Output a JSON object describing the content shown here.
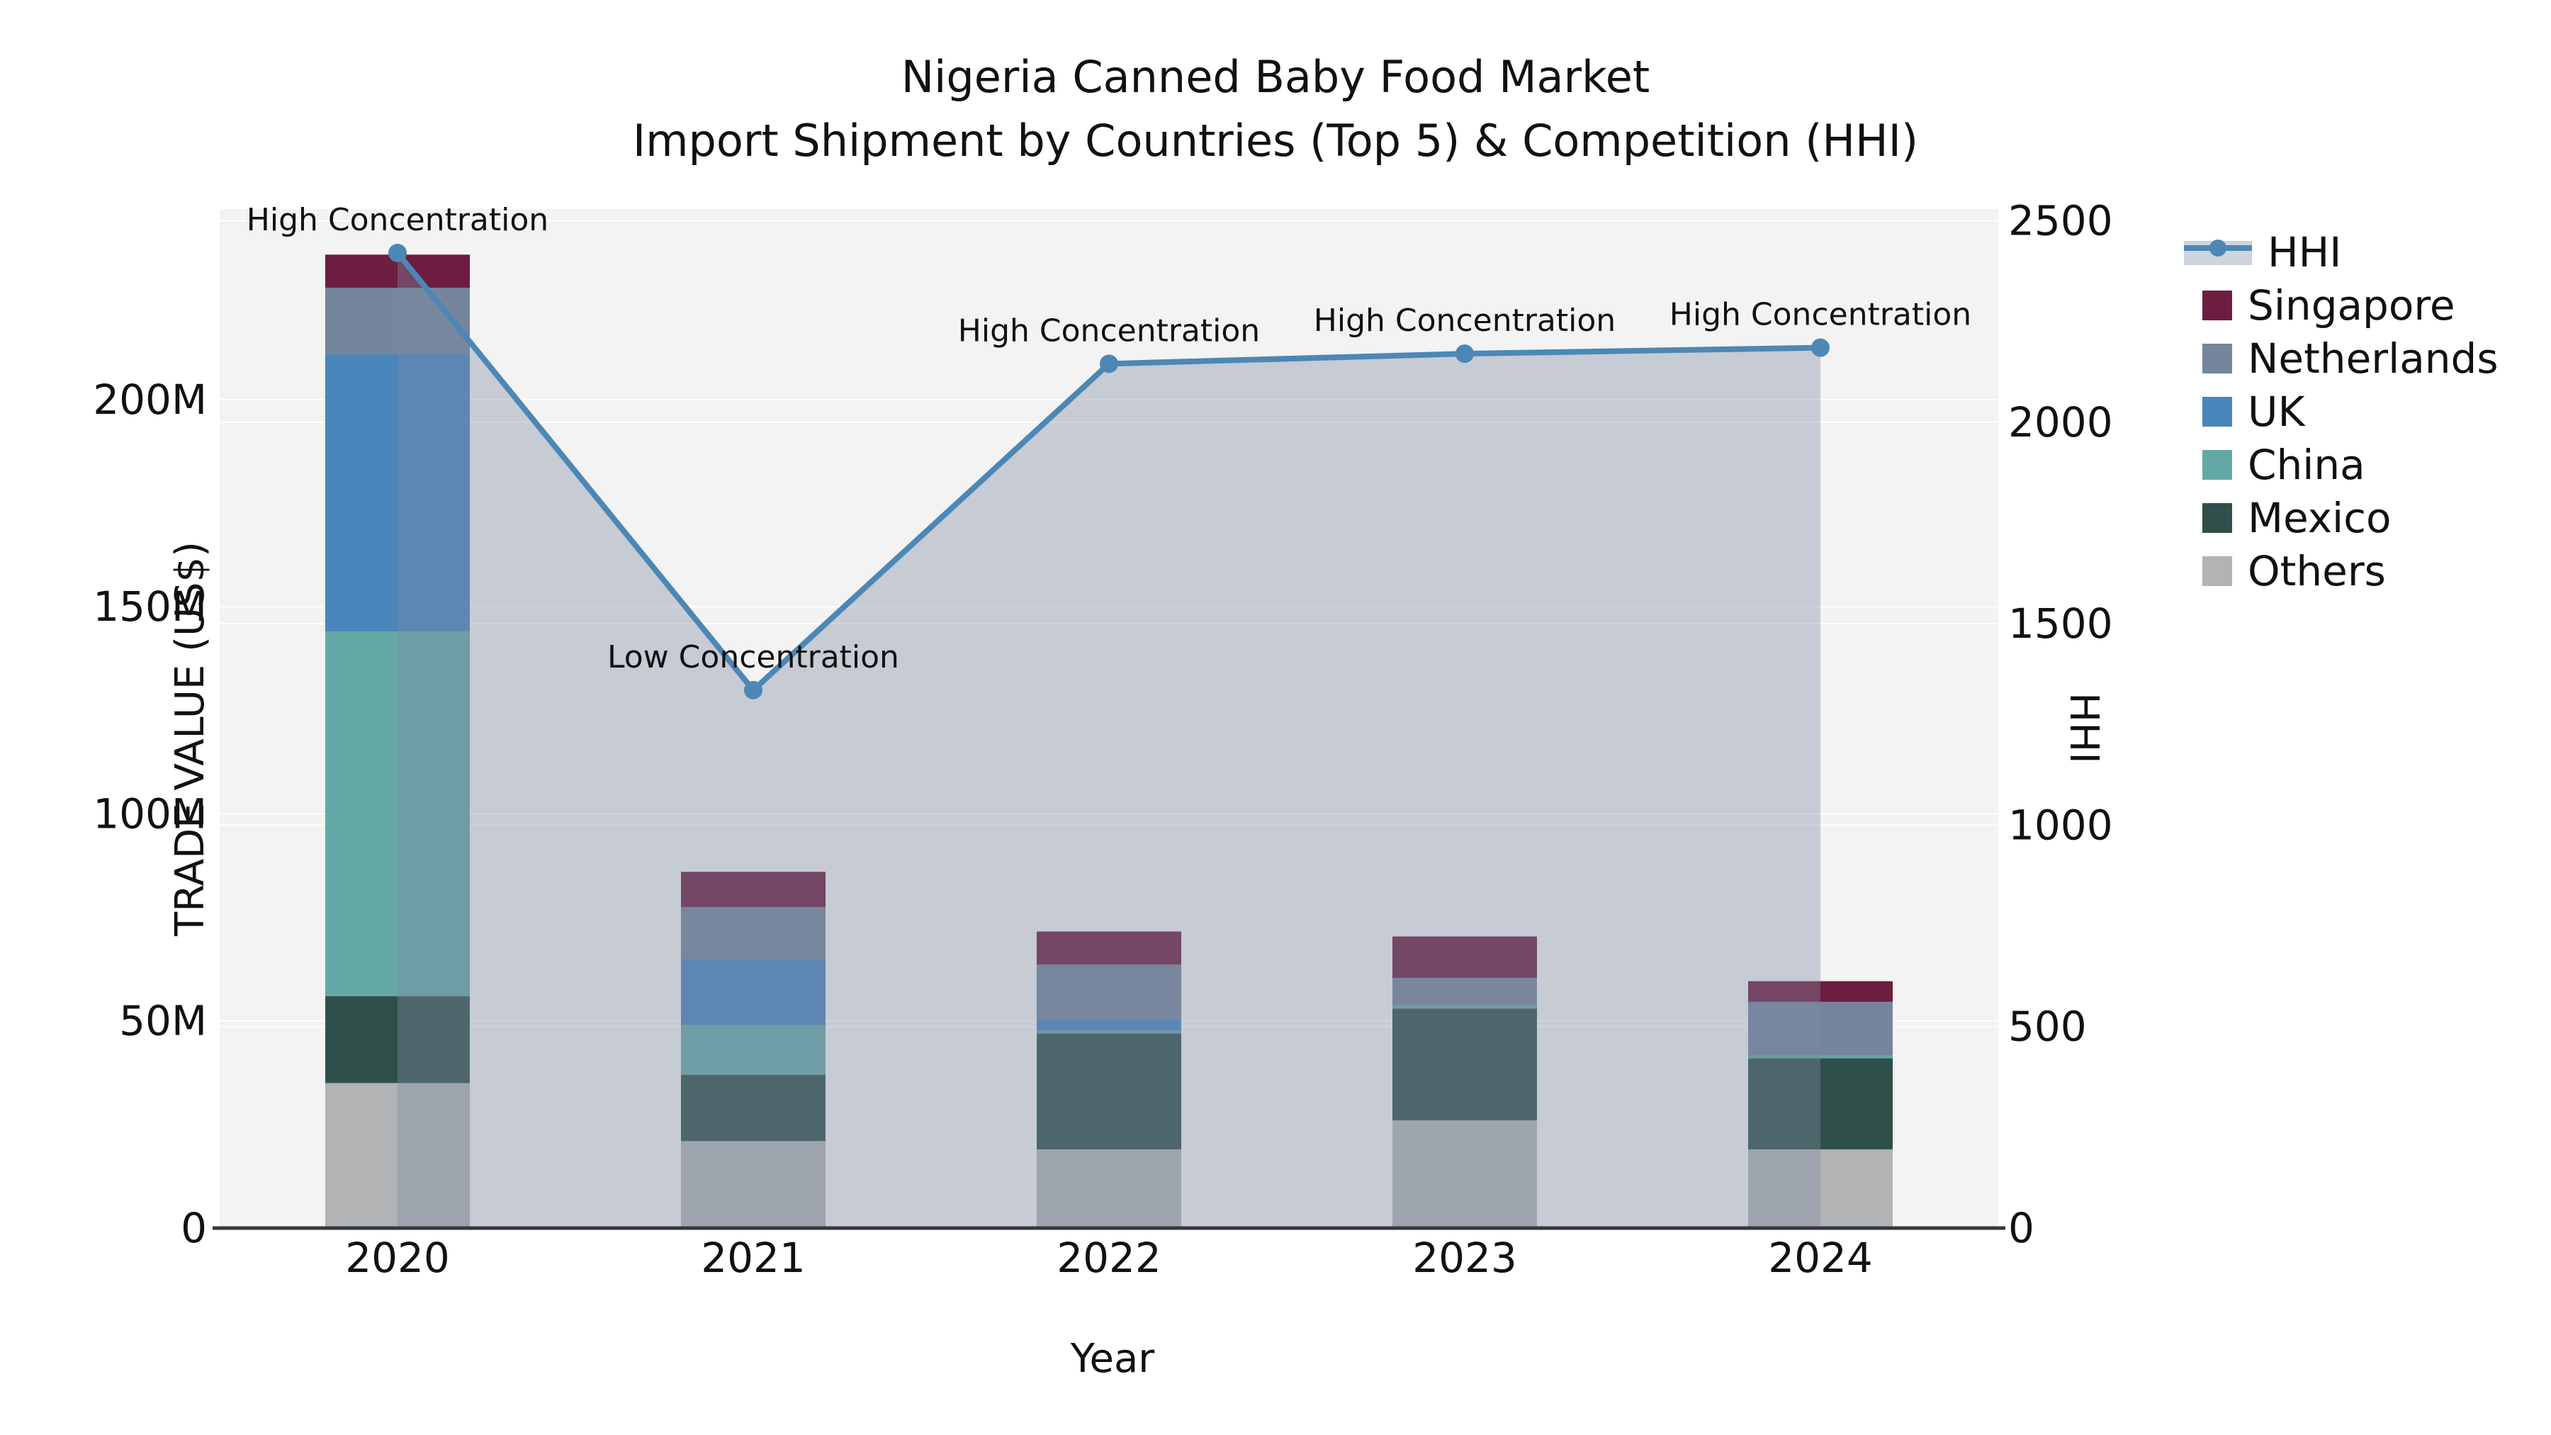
{
  "title": {
    "line1": "Nigeria Canned Baby Food Market",
    "line2": "Import Shipment by Countries (Top 5) & Competition (HHI)"
  },
  "axes": {
    "x_title": "Year",
    "y_left_title": "TRADE VALUE (US$)",
    "y_right_title": "HHI",
    "y_left_ticks": [
      {
        "label": "0",
        "value": 0
      },
      {
        "label": "50M",
        "value": 50
      },
      {
        "label": "100M",
        "value": 100
      },
      {
        "label": "150M",
        "value": 150
      },
      {
        "label": "200M",
        "value": 200
      }
    ],
    "y_right_ticks": [
      {
        "label": "0",
        "value": 0
      },
      {
        "label": "500",
        "value": 500
      },
      {
        "label": "1000",
        "value": 1000
      },
      {
        "label": "1500",
        "value": 1500
      },
      {
        "label": "2000",
        "value": 2000
      },
      {
        "label": "2500",
        "value": 2500
      }
    ]
  },
  "legend": [
    {
      "label": "HHI",
      "kind": "line",
      "color": "#4c87b6",
      "fill": "#cdd4dc"
    },
    {
      "label": "Singapore",
      "kind": "swatch",
      "color": "#6d1d40"
    },
    {
      "label": "Netherlands",
      "kind": "swatch",
      "color": "#75859c"
    },
    {
      "label": "UK",
      "kind": "swatch",
      "color": "#4a85bb"
    },
    {
      "label": "China",
      "kind": "swatch",
      "color": "#64a8a6"
    },
    {
      "label": "Mexico",
      "kind": "swatch",
      "color": "#2f4f4b"
    },
    {
      "label": "Others",
      "kind": "swatch",
      "color": "#b2b3b5"
    }
  ],
  "chart_data": {
    "type": "bar+line",
    "title": "Nigeria Canned Baby Food Market — Import Shipment by Countries (Top 5) & Competition (HHI)",
    "categories": [
      "2020",
      "2021",
      "2022",
      "2023",
      "2024"
    ],
    "bar_unit": "M US$",
    "bar_stack_order_bottom_to_top": [
      "Others",
      "Mexico",
      "China",
      "UK",
      "Netherlands",
      "Singapore"
    ],
    "series": [
      {
        "name": "Others",
        "color": "#b2b3b5",
        "values": [
          35,
          21,
          19,
          26,
          19
        ]
      },
      {
        "name": "Mexico",
        "color": "#2f4f4b",
        "values": [
          21,
          16,
          28,
          27,
          22
        ]
      },
      {
        "name": "China",
        "color": "#64a8a6",
        "values": [
          88,
          12,
          0.6,
          0.7,
          0.6
        ]
      },
      {
        "name": "UK",
        "color": "#4a85bb",
        "values": [
          67,
          16,
          3,
          0,
          0
        ]
      },
      {
        "name": "Netherlands",
        "color": "#75859c",
        "values": [
          16,
          12.5,
          13,
          6.7,
          13
        ]
      },
      {
        "name": "Singapore",
        "color": "#6d1d40",
        "values": [
          8,
          8.5,
          8,
          10,
          5
        ]
      }
    ],
    "line_series": {
      "name": "HHI",
      "color": "#4c87b6",
      "area_fill": "rgba(126,140,163,0.38)",
      "values": [
        2420,
        1335,
        2145,
        2170,
        2185
      ]
    },
    "annotations": [
      {
        "year": "2020",
        "text": "High Concentration"
      },
      {
        "year": "2021",
        "text": "Low Concentration"
      },
      {
        "year": "2022",
        "text": "High Concentration"
      },
      {
        "year": "2023",
        "text": "High Concentration"
      },
      {
        "year": "2024",
        "text": "High Concentration"
      }
    ],
    "xlabel": "Year",
    "ylabel_left": "TRADE VALUE (US$)",
    "ylabel_right": "HHI",
    "ylim_left": [
      0,
      246
    ],
    "ylim_right": [
      0,
      2529
    ],
    "grid": true,
    "legend_position": "right",
    "plot_bg": "#f2f3f2",
    "grid_color": "#ffffff",
    "axis_line_color": "#33383c"
  }
}
